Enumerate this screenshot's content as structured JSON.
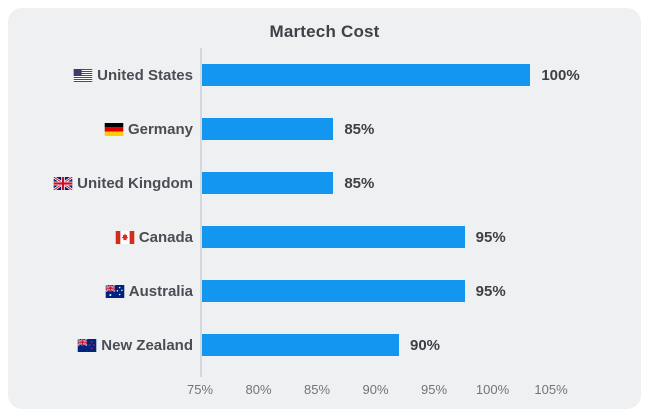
{
  "card": {
    "title": "Martech Cost"
  },
  "colors": {
    "bar": "#1296f0",
    "card_background": "#eff0f2",
    "title_text": "#3f4148",
    "label_text": "#4a4d53",
    "tick_text": "#71747b",
    "axis_line": "#d5d7db"
  },
  "chart_data": {
    "type": "bar",
    "orientation": "horizontal",
    "title": "Martech Cost",
    "categories": [
      "United States",
      "Germany",
      "United Kingdom",
      "Canada",
      "Australia",
      "New Zealand"
    ],
    "values": [
      100,
      85,
      85,
      95,
      95,
      90
    ],
    "value_labels": [
      "100%",
      "85%",
      "85%",
      "95%",
      "95%",
      "90%"
    ],
    "flags": [
      "us",
      "de",
      "gb",
      "ca",
      "au",
      "nz"
    ],
    "x_tick_labels": [
      "75%",
      "80%",
      "85%",
      "90%",
      "95%",
      "100%",
      "105%"
    ],
    "xlim": [
      75,
      105
    ],
    "xlabel": "",
    "ylabel": "",
    "grid": false,
    "legend": false
  }
}
